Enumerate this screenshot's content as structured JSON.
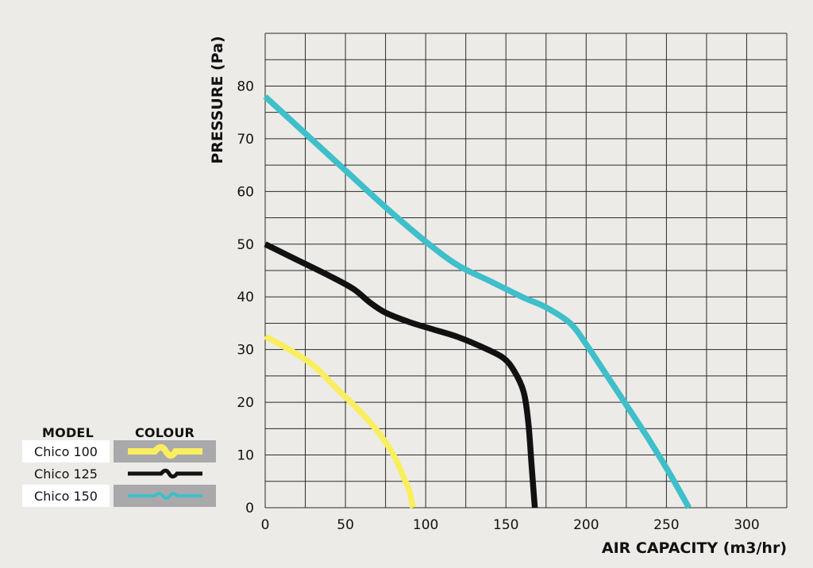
{
  "chart_data": {
    "type": "line",
    "xlabel": "AIR CAPACITY (m3/hr)",
    "ylabel": "PRESSURE (Pa)",
    "xlim": [
      0,
      325
    ],
    "ylim": [
      0,
      90
    ],
    "x_ticks": [
      0,
      50,
      100,
      150,
      200,
      250,
      300
    ],
    "y_ticks": [
      0,
      10,
      20,
      30,
      40,
      50,
      60,
      70,
      80
    ],
    "grid": true,
    "series": [
      {
        "name": "Chico 100",
        "color": "#f9ee5e",
        "points": [
          [
            0,
            32.5
          ],
          [
            15,
            30
          ],
          [
            30,
            27
          ],
          [
            45,
            22.5
          ],
          [
            60,
            18
          ],
          [
            70,
            14.5
          ],
          [
            80,
            10
          ],
          [
            86,
            6
          ],
          [
            90,
            3
          ],
          [
            92,
            0
          ]
        ]
      },
      {
        "name": "Chico 125",
        "color": "#111111",
        "points": [
          [
            0,
            50
          ],
          [
            20,
            47
          ],
          [
            40,
            44
          ],
          [
            55,
            41.5
          ],
          [
            65,
            39
          ],
          [
            75,
            37
          ],
          [
            90,
            35.2
          ],
          [
            105,
            33.8
          ],
          [
            120,
            32.4
          ],
          [
            135,
            30.5
          ],
          [
            148,
            28.5
          ],
          [
            155,
            26
          ],
          [
            161,
            22
          ],
          [
            164,
            16
          ],
          [
            166,
            8
          ],
          [
            168,
            0
          ]
        ]
      },
      {
        "name": "Chico 150",
        "color": "#3ebfc9",
        "points": [
          [
            0,
            78
          ],
          [
            25,
            71
          ],
          [
            50,
            64
          ],
          [
            75,
            57
          ],
          [
            100,
            50.5
          ],
          [
            120,
            46
          ],
          [
            140,
            43
          ],
          [
            160,
            40
          ],
          [
            175,
            38
          ],
          [
            190,
            35
          ],
          [
            200,
            31
          ],
          [
            212,
            25.5
          ],
          [
            225,
            19.5
          ],
          [
            240,
            12.5
          ],
          [
            252,
            6.5
          ],
          [
            264,
            0
          ]
        ]
      }
    ]
  },
  "legend": {
    "header_model": "MODEL",
    "header_colour": "COLOUR",
    "items": [
      {
        "model": "Chico 100",
        "color": "#f9ee5e"
      },
      {
        "model": "Chico 125",
        "color": "#111111"
      },
      {
        "model": "Chico 150",
        "color": "#3ebfc9"
      }
    ]
  }
}
